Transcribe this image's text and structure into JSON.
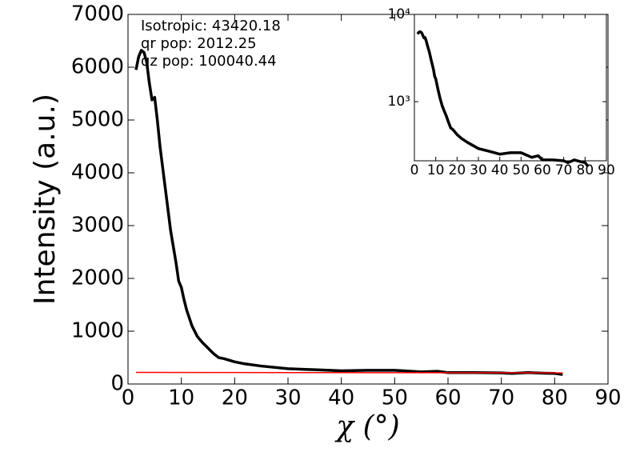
{
  "chart_data": [
    {
      "type": "line",
      "xlabel": "χ (°)",
      "ylabel": "Intensity (a.u.)",
      "annotations": [
        "Isotropic: 43420.18",
        "qr pop: 2012.25",
        "qz pop: 100040.44"
      ],
      "xlim": [
        0,
        90
      ],
      "xticks": [
        0,
        10,
        20,
        30,
        40,
        50,
        60,
        70,
        80,
        90
      ],
      "ylim": [
        0,
        7000
      ],
      "yticks": [
        0,
        1000,
        2000,
        3000,
        4000,
        5000,
        6000,
        7000
      ],
      "series": [
        {
          "color": "#000000",
          "x": [
            1.5,
            2,
            2.5,
            3,
            3.5,
            4,
            4.5,
            5,
            5.5,
            6,
            7,
            8,
            9,
            9.5,
            10,
            10.5,
            11,
            12,
            13,
            14,
            15,
            16,
            17,
            18,
            20,
            22,
            25,
            30,
            35,
            40,
            45,
            50,
            55,
            58,
            60,
            65,
            70,
            72,
            75,
            78,
            80,
            81.5
          ],
          "values": [
            5950,
            6200,
            6320,
            6280,
            6100,
            5700,
            5380,
            5430,
            5000,
            4500,
            3700,
            2900,
            2300,
            1950,
            1830,
            1600,
            1400,
            1100,
            900,
            780,
            680,
            580,
            500,
            480,
            420,
            380,
            340,
            290,
            270,
            250,
            260,
            260,
            230,
            240,
            215,
            215,
            210,
            200,
            215,
            205,
            200,
            180
          ]
        },
        {
          "color": "#ff0000",
          "x": [
            1.5,
            81.5
          ],
          "values": [
            220,
            210
          ]
        }
      ]
    },
    {
      "type": "line",
      "log_y": true,
      "xlim": [
        0,
        90
      ],
      "xticks": [
        0,
        10,
        20,
        30,
        40,
        50,
        60,
        70,
        80,
        90
      ],
      "ylim": [
        210,
        10000
      ],
      "yticks": [
        {
          "value": 1000,
          "label": "10³"
        },
        {
          "value": 10000,
          "label": "10⁴"
        }
      ],
      "series": [
        {
          "color": "#000000",
          "x": [
            1.5,
            2,
            2.5,
            3,
            3.5,
            4,
            4.5,
            5,
            5.5,
            6,
            7,
            8,
            9,
            9.5,
            10,
            10.5,
            11,
            12,
            13,
            14,
            15,
            16,
            17,
            18,
            20,
            22,
            25,
            30,
            35,
            40,
            45,
            50,
            55,
            58,
            60,
            65,
            70,
            72,
            75,
            78,
            80,
            81.5
          ],
          "values": [
            5950,
            6200,
            6320,
            6280,
            6100,
            5700,
            5380,
            5430,
            5000,
            4500,
            3700,
            2900,
            2300,
            1950,
            1830,
            1600,
            1400,
            1100,
            900,
            780,
            680,
            580,
            500,
            480,
            420,
            380,
            340,
            290,
            270,
            250,
            260,
            260,
            230,
            240,
            215,
            215,
            210,
            200,
            215,
            205,
            200,
            180
          ]
        }
      ]
    }
  ]
}
